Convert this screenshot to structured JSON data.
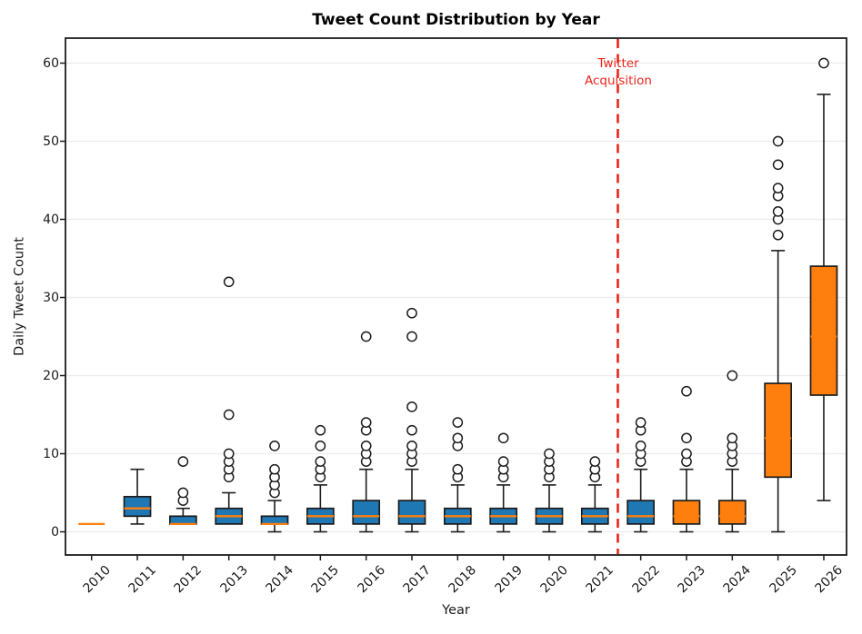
{
  "title": "Tweet Count Distribution by Year",
  "xlabel": "Year",
  "ylabel": "Daily Tweet Count",
  "annotation": {
    "line1": "Twitter",
    "line2": "Acquisition"
  },
  "colors": {
    "box_pre": "#1f77b4",
    "box_post": "#ff7f0e",
    "median": "#ff7f0e",
    "box_edge": "#1c1c1c",
    "whisker": "#1c1c1c",
    "outlier_edge": "#1c1c1c",
    "grid": "#ececec",
    "event_line": "#e9251c",
    "annotation_text": "#e9251c",
    "spine": "#1c1c1c",
    "background": "#ffffff"
  },
  "chart_data": {
    "type": "boxplot",
    "title": "Tweet Count Distribution by Year",
    "xlabel": "Year",
    "ylabel": "Daily Tweet Count",
    "categories": [
      "2010",
      "2011",
      "2012",
      "2013",
      "2014",
      "2015",
      "2016",
      "2017",
      "2018",
      "2019",
      "2020",
      "2021",
      "2022",
      "2023",
      "2024",
      "2025",
      "2026"
    ],
    "yticks": [
      0,
      10,
      20,
      30,
      40,
      50,
      60
    ],
    "ylim": [
      -3,
      63.2
    ],
    "grid": "horizontal",
    "event_line_between": [
      "2021",
      "2022"
    ],
    "series": [
      {
        "year": "2010",
        "whislo": 1,
        "q1": 1,
        "med": 1,
        "q3": 1,
        "whishi": 1,
        "outliers": [],
        "group": "pre"
      },
      {
        "year": "2011",
        "whislo": 1,
        "q1": 2,
        "med": 3,
        "q3": 4.5,
        "whishi": 8,
        "outliers": [],
        "group": "pre"
      },
      {
        "year": "2012",
        "whislo": 1,
        "q1": 1,
        "med": 1,
        "q3": 2,
        "whishi": 3,
        "outliers": [
          4,
          5,
          9
        ],
        "group": "pre"
      },
      {
        "year": "2013",
        "whislo": 1,
        "q1": 1,
        "med": 2,
        "q3": 3,
        "whishi": 5,
        "outliers": [
          7,
          8,
          9,
          10,
          15,
          32
        ],
        "group": "pre"
      },
      {
        "year": "2014",
        "whislo": 0,
        "q1": 1,
        "med": 1,
        "q3": 2,
        "whishi": 4,
        "outliers": [
          5,
          6,
          7,
          8,
          11
        ],
        "group": "pre"
      },
      {
        "year": "2015",
        "whislo": 0,
        "q1": 1,
        "med": 2,
        "q3": 3,
        "whishi": 6,
        "outliers": [
          7,
          8,
          9,
          11,
          13
        ],
        "group": "pre"
      },
      {
        "year": "2016",
        "whislo": 0,
        "q1": 1,
        "med": 2,
        "q3": 4,
        "whishi": 8,
        "outliers": [
          9,
          10,
          11,
          13,
          14,
          25
        ],
        "group": "pre"
      },
      {
        "year": "2017",
        "whislo": 0,
        "q1": 1,
        "med": 2,
        "q3": 4,
        "whishi": 8,
        "outliers": [
          9,
          10,
          11,
          13,
          16,
          25,
          28
        ],
        "group": "pre"
      },
      {
        "year": "2018",
        "whislo": 0,
        "q1": 1,
        "med": 2,
        "q3": 3,
        "whishi": 6,
        "outliers": [
          7,
          8,
          11,
          12,
          14
        ],
        "group": "pre"
      },
      {
        "year": "2019",
        "whislo": 0,
        "q1": 1,
        "med": 2,
        "q3": 3,
        "whishi": 6,
        "outliers": [
          7,
          8,
          9,
          12
        ],
        "group": "pre"
      },
      {
        "year": "2020",
        "whislo": 0,
        "q1": 1,
        "med": 2,
        "q3": 3,
        "whishi": 6,
        "outliers": [
          7,
          8,
          9,
          10
        ],
        "group": "pre"
      },
      {
        "year": "2021",
        "whislo": 0,
        "q1": 1,
        "med": 2,
        "q3": 3,
        "whishi": 6,
        "outliers": [
          7,
          8,
          9
        ],
        "group": "pre"
      },
      {
        "year": "2022",
        "whislo": 0,
        "q1": 1,
        "med": 2,
        "q3": 4,
        "whishi": 8,
        "outliers": [
          9,
          10,
          11,
          13,
          14
        ],
        "group": "pre"
      },
      {
        "year": "2023",
        "whislo": 0,
        "q1": 1,
        "med": 2,
        "q3": 4,
        "whishi": 8,
        "outliers": [
          9,
          10,
          12,
          18
        ],
        "group": "post"
      },
      {
        "year": "2024",
        "whislo": 0,
        "q1": 1,
        "med": 2,
        "q3": 4,
        "whishi": 8,
        "outliers": [
          9,
          10,
          11,
          12,
          20
        ],
        "group": "post"
      },
      {
        "year": "2025",
        "whislo": 0,
        "q1": 7,
        "med": 12,
        "q3": 19,
        "whishi": 36,
        "outliers": [
          38,
          40,
          41,
          43,
          44,
          47,
          50
        ],
        "group": "post"
      },
      {
        "year": "2026",
        "whislo": 4,
        "q1": 17.5,
        "med": 25,
        "q3": 34,
        "whishi": 56,
        "outliers": [
          60
        ],
        "group": "post"
      }
    ]
  }
}
